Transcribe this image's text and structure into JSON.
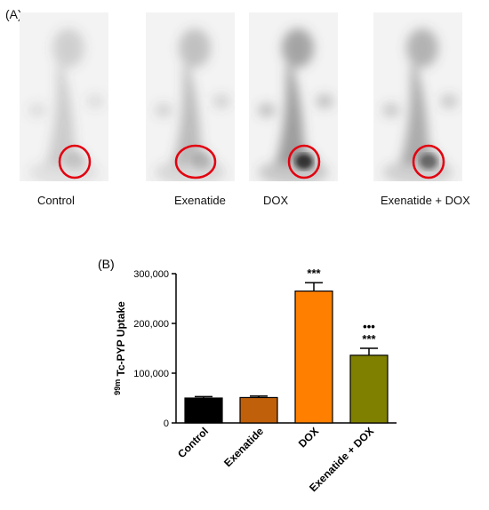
{
  "panel_a": {
    "label": "(A)",
    "images": [
      {
        "caption": "Control",
        "intensity": 0.25,
        "hotspot": 0.05
      },
      {
        "caption": "Exenatide",
        "intensity": 0.35,
        "hotspot": 0.08
      },
      {
        "caption": "DOX",
        "intensity": 0.55,
        "hotspot": 0.75
      },
      {
        "caption": "Exenatide + DOX",
        "intensity": 0.45,
        "hotspot": 0.45
      }
    ],
    "roi_color": "#e3000f"
  },
  "chart_data": {
    "label": "(B)",
    "type": "bar",
    "ylabel_sup": "99m",
    "ylabel": " Tc-PYP Uptake",
    "ylim": [
      0,
      300000
    ],
    "yticks": [
      0,
      100000,
      200000,
      300000
    ],
    "ytick_labels": [
      "0",
      "100,000",
      "200,000",
      "300,000"
    ],
    "categories": [
      "Control",
      "Exenatide",
      "DOX",
      "Exenatide + DOX"
    ],
    "values": [
      50000,
      51000,
      265000,
      136000
    ],
    "errors": [
      3000,
      3000,
      17000,
      14000
    ],
    "colors": [
      "#000000",
      "#c0600a",
      "#ff8000",
      "#808000"
    ],
    "annotations": [
      {
        "index": 2,
        "lines": [
          "***"
        ]
      },
      {
        "index": 3,
        "lines": [
          "•••",
          "***"
        ]
      }
    ]
  }
}
